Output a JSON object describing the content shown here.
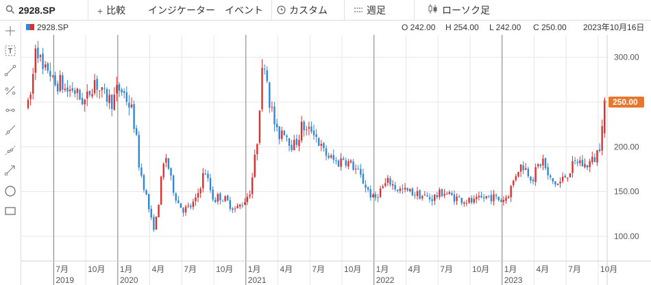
{
  "toolbar": {
    "symbol": "2928.SP",
    "compare_label": "比較",
    "indicator_label": "インジケーター",
    "event_label": "イベント",
    "custom_label": "カスタム",
    "interval_label": "週足",
    "chart_style_label": "ローソク足"
  },
  "legend": {
    "symbol": "2928.SP",
    "open": "O 242.00",
    "high": "H 254.00",
    "low": "L 242.00",
    "close": "C 250.00",
    "date": "2023年10月16日"
  },
  "tools": [
    "crosshair-icon",
    "text-tool-icon",
    "trend-line-icon",
    "percent-line-icon",
    "ray-line-icon",
    "extended-line-icon",
    "channel-line-icon",
    "arrow-line-icon",
    "circle-icon",
    "rectangle-icon"
  ],
  "colors": {
    "up": "#d93030",
    "down": "#2f87d6",
    "price_tag": "#e8772e",
    "grid": "#e6e6e6",
    "year_line": "#7a7a7a"
  },
  "chart_data": {
    "type": "candlestick",
    "y_ticks": [
      "100.00",
      "150.00",
      "200.00",
      "250.00",
      "300.00"
    ],
    "ylim": [
      90,
      325
    ],
    "x_ticks": [
      {
        "label": "7月",
        "year": "2019",
        "t": 2019.5
      },
      {
        "label": "10月",
        "year": "",
        "t": 2019.75
      },
      {
        "label": "1月",
        "year": "2020",
        "t": 2020.0
      },
      {
        "label": "4月",
        "year": "",
        "t": 2020.25
      },
      {
        "label": "7月",
        "year": "",
        "t": 2020.5
      },
      {
        "label": "10月",
        "year": "",
        "t": 2020.75
      },
      {
        "label": "1月",
        "year": "2021",
        "t": 2021.0
      },
      {
        "label": "4月",
        "year": "",
        "t": 2021.25
      },
      {
        "label": "7月",
        "year": "",
        "t": 2021.5
      },
      {
        "label": "10月",
        "year": "",
        "t": 2021.75
      },
      {
        "label": "1月",
        "year": "2022",
        "t": 2022.0
      },
      {
        "label": "4月",
        "year": "",
        "t": 2022.25
      },
      {
        "label": "7月",
        "year": "",
        "t": 2022.5
      },
      {
        "label": "10月",
        "year": "",
        "t": 2022.75
      },
      {
        "label": "1月",
        "year": "2023",
        "t": 2023.0
      },
      {
        "label": "4月",
        "year": "",
        "t": 2023.25
      },
      {
        "label": "7月",
        "year": "",
        "t": 2023.5
      },
      {
        "label": "10月",
        "year": "",
        "t": 2023.75
      }
    ],
    "xlim": [
      2019.3,
      2023.82
    ],
    "last_price": "250.00",
    "last_value": 250,
    "path": [
      [
        2019.3,
        245
      ],
      [
        2019.33,
        265
      ],
      [
        2019.36,
        320
      ],
      [
        2019.39,
        300
      ],
      [
        2019.42,
        280
      ],
      [
        2019.46,
        290
      ],
      [
        2019.5,
        268
      ],
      [
        2019.55,
        272
      ],
      [
        2019.6,
        262
      ],
      [
        2019.65,
        265
      ],
      [
        2019.7,
        255
      ],
      [
        2019.75,
        250
      ],
      [
        2019.78,
        262
      ],
      [
        2019.82,
        275
      ],
      [
        2019.85,
        265
      ],
      [
        2019.88,
        258
      ],
      [
        2019.92,
        255
      ],
      [
        2019.96,
        250
      ],
      [
        2020.0,
        265
      ],
      [
        2020.04,
        262
      ],
      [
        2020.08,
        250
      ],
      [
        2020.11,
        240
      ],
      [
        2020.14,
        215
      ],
      [
        2020.17,
        175
      ],
      [
        2020.2,
        160
      ],
      [
        2020.23,
        140
      ],
      [
        2020.26,
        118
      ],
      [
        2020.29,
        108
      ],
      [
        2020.32,
        140
      ],
      [
        2020.35,
        175
      ],
      [
        2020.38,
        190
      ],
      [
        2020.41,
        165
      ],
      [
        2020.44,
        150
      ],
      [
        2020.47,
        138
      ],
      [
        2020.51,
        130
      ],
      [
        2020.56,
        132
      ],
      [
        2020.61,
        140
      ],
      [
        2020.64,
        155
      ],
      [
        2020.68,
        175
      ],
      [
        2020.71,
        158
      ],
      [
        2020.75,
        140
      ],
      [
        2020.79,
        145
      ],
      [
        2020.83,
        142
      ],
      [
        2020.88,
        135
      ],
      [
        2020.92,
        130
      ],
      [
        2020.96,
        135
      ],
      [
        2021.0,
        142
      ],
      [
        2021.03,
        150
      ],
      [
        2021.06,
        175
      ],
      [
        2021.09,
        210
      ],
      [
        2021.12,
        275
      ],
      [
        2021.15,
        300
      ],
      [
        2021.18,
        255
      ],
      [
        2021.21,
        235
      ],
      [
        2021.25,
        210
      ],
      [
        2021.29,
        222
      ],
      [
        2021.33,
        210
      ],
      [
        2021.37,
        200
      ],
      [
        2021.41,
        210
      ],
      [
        2021.44,
        225
      ],
      [
        2021.48,
        215
      ],
      [
        2021.52,
        222
      ],
      [
        2021.56,
        208
      ],
      [
        2021.6,
        195
      ],
      [
        2021.64,
        190
      ],
      [
        2021.68,
        185
      ],
      [
        2021.72,
        182
      ],
      [
        2021.76,
        188
      ],
      [
        2021.8,
        182
      ],
      [
        2021.84,
        178
      ],
      [
        2021.88,
        170
      ],
      [
        2021.92,
        160
      ],
      [
        2021.96,
        150
      ],
      [
        2022.0,
        140
      ],
      [
        2022.03,
        148
      ],
      [
        2022.07,
        155
      ],
      [
        2022.12,
        162
      ],
      [
        2022.16,
        155
      ],
      [
        2022.2,
        152
      ],
      [
        2022.26,
        150
      ],
      [
        2022.32,
        148
      ],
      [
        2022.38,
        145
      ],
      [
        2022.44,
        142
      ],
      [
        2022.5,
        146
      ],
      [
        2022.54,
        150
      ],
      [
        2022.6,
        145
      ],
      [
        2022.66,
        142
      ],
      [
        2022.72,
        140
      ],
      [
        2022.78,
        138
      ],
      [
        2022.84,
        142
      ],
      [
        2022.9,
        145
      ],
      [
        2022.96,
        142
      ],
      [
        2023.0,
        140
      ],
      [
        2023.04,
        145
      ],
      [
        2023.08,
        158
      ],
      [
        2023.12,
        175
      ],
      [
        2023.16,
        180
      ],
      [
        2023.2,
        172
      ],
      [
        2023.24,
        165
      ],
      [
        2023.28,
        178
      ],
      [
        2023.32,
        185
      ],
      [
        2023.36,
        165
      ],
      [
        2023.4,
        160
      ],
      [
        2023.44,
        158
      ],
      [
        2023.48,
        165
      ],
      [
        2023.52,
        172
      ],
      [
        2023.56,
        180
      ],
      [
        2023.6,
        185
      ],
      [
        2023.64,
        178
      ],
      [
        2023.68,
        182
      ],
      [
        2023.72,
        186
      ],
      [
        2023.76,
        200
      ],
      [
        2023.78,
        230
      ],
      [
        2023.8,
        250
      ]
    ]
  }
}
